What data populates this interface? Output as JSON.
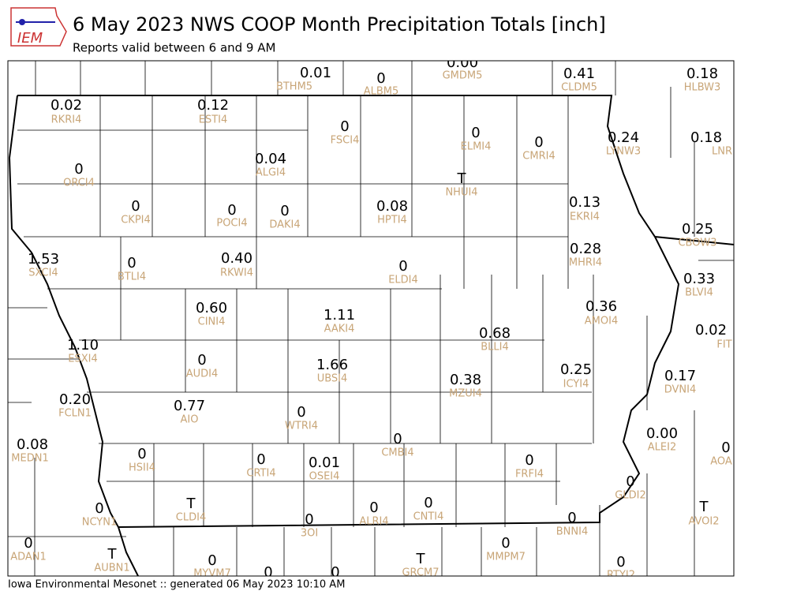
{
  "header": {
    "logo": "IEM",
    "title": "6 May 2023 NWS COOP Month Precipitation Totals [inch]",
    "subtitle": "Reports valid between 6 and 9 AM"
  },
  "stations": [
    {
      "value": "0.01",
      "id": "BTHM5"
    },
    {
      "value": "0",
      "id": "ALBM5"
    },
    {
      "value": "0.00",
      "id": "GMDM5"
    },
    {
      "value": "0.41",
      "id": "CLDM5"
    },
    {
      "value": "0.18",
      "id": "HLBW3"
    },
    {
      "value": "0.02",
      "id": "RKRI4"
    },
    {
      "value": "0.12",
      "id": "ESTI4"
    },
    {
      "value": "0",
      "id": "FSCI4"
    },
    {
      "value": "0",
      "id": "ELMI4"
    },
    {
      "value": "0",
      "id": "CMRI4"
    },
    {
      "value": "0.24",
      "id": "LYNW3"
    },
    {
      "value": "0.18",
      "id": "LNR"
    },
    {
      "value": "0",
      "id": "ORCI4"
    },
    {
      "value": "0.04",
      "id": "ALGI4"
    },
    {
      "value": "T",
      "id": "NHUI4"
    },
    {
      "value": "0",
      "id": "CKPI4"
    },
    {
      "value": "0",
      "id": "POCI4"
    },
    {
      "value": "0",
      "id": "DAKI4"
    },
    {
      "value": "0.08",
      "id": "HPTI4"
    },
    {
      "value": "0.13",
      "id": "EKRI4"
    },
    {
      "value": "0.25",
      "id": "CBOW3"
    },
    {
      "value": "1.53",
      "id": "SXCI4"
    },
    {
      "value": "0",
      "id": "BTLI4"
    },
    {
      "value": "0.40",
      "id": "RKWI4"
    },
    {
      "value": "0",
      "id": "ELDI4"
    },
    {
      "value": "0.28",
      "id": "MHRI4"
    },
    {
      "value": "0.33",
      "id": "BLVI4"
    },
    {
      "value": "0.60",
      "id": "CINI4"
    },
    {
      "value": "1.11",
      "id": "AAKI4"
    },
    {
      "value": "0.36",
      "id": "AMOI4"
    },
    {
      "value": "0.68",
      "id": "BLLI4"
    },
    {
      "value": "0.02",
      "id": "FIT"
    },
    {
      "value": "1.10",
      "id": "ESXI4"
    },
    {
      "value": "0",
      "id": "AUDI4"
    },
    {
      "value": "1.66",
      "id": "UBSI4"
    },
    {
      "value": "0.25",
      "id": "ICYI4"
    },
    {
      "value": "0.38",
      "id": "MZUI4"
    },
    {
      "value": "0.17",
      "id": "DVNI4"
    },
    {
      "value": "0.20",
      "id": "FCLN1"
    },
    {
      "value": "0.77",
      "id": "AIO"
    },
    {
      "value": "0",
      "id": "WTRI4"
    },
    {
      "value": "0",
      "id": "CMBI4"
    },
    {
      "value": "0.00",
      "id": "ALEI2"
    },
    {
      "value": "0",
      "id": "AOA"
    },
    {
      "value": "0.08",
      "id": "MEDN1"
    },
    {
      "value": "0",
      "id": "HSII4"
    },
    {
      "value": "0",
      "id": "CRTI4"
    },
    {
      "value": "0.01",
      "id": "OSEI4"
    },
    {
      "value": "0",
      "id": "FRFI4"
    },
    {
      "value": "0",
      "id": "GLDI2"
    },
    {
      "value": "T",
      "id": "CLDI4"
    },
    {
      "value": "0",
      "id": "ALRI4"
    },
    {
      "value": "0",
      "id": "CNTI4"
    },
    {
      "value": "T",
      "id": "AVOI2"
    },
    {
      "value": "0",
      "id": "NCYN1"
    },
    {
      "value": "0",
      "id": "3OI"
    },
    {
      "value": "0",
      "id": "BNNI4"
    },
    {
      "value": "0",
      "id": "ADAN1"
    },
    {
      "value": "T",
      "id": "AUBN1"
    },
    {
      "value": "0",
      "id": "MYVM7"
    },
    {
      "value": "0"
    },
    {
      "value": "0"
    },
    {
      "value": "T",
      "id": "GRCM7"
    },
    {
      "value": "0",
      "id": "MMPM7"
    },
    {
      "value": "0",
      "id": "RTYI2"
    }
  ],
  "footer": "Iowa Environmental Mesonet :: generated 06 May 2023 10:10 AM"
}
